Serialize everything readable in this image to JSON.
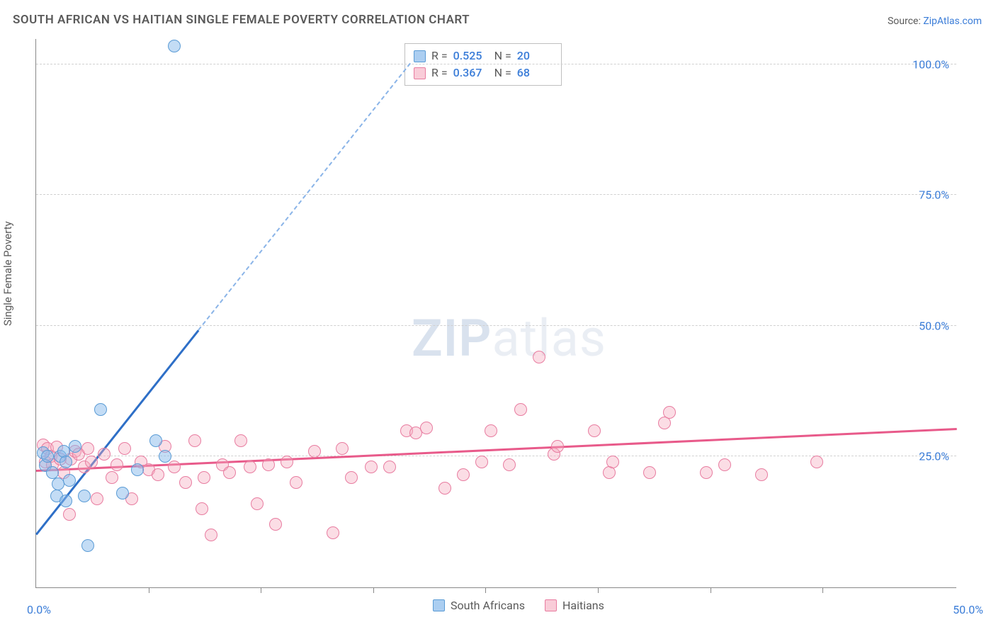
{
  "title": "SOUTH AFRICAN VS HAITIAN SINGLE FEMALE POVERTY CORRELATION CHART",
  "source_prefix": "Source: ",
  "source_link": "ZipAtlas.com",
  "ylabel": "Single Female Poverty",
  "watermark_zip": "ZIP",
  "watermark_atlas": "atlas",
  "chart": {
    "type": "scatter",
    "background_color": "#ffffff",
    "grid_color": "#d0d0d0",
    "axis_color": "#888888",
    "label_color": "#3b7dd8",
    "text_color": "#5a5a5a",
    "xlim": [
      0,
      50
    ],
    "ylim": [
      0,
      105
    ],
    "xtick_positions": [
      0,
      6.1,
      12.2,
      18.3,
      24.4,
      30.5,
      36.6,
      42.7,
      50
    ],
    "xtick_labels": {
      "0": "0.0%",
      "50": "50.0%"
    },
    "ytick_positions": [
      25,
      50,
      75,
      100
    ],
    "ytick_labels": [
      "25.0%",
      "50.0%",
      "75.0%",
      "100.0%"
    ],
    "series": {
      "south_africans": {
        "label": "South Africans",
        "marker_fill": "rgba(135,185,235,0.5)",
        "marker_stroke": "#5a9bd5",
        "marker_size": 18,
        "line_color_solid": "#2e6fc7",
        "line_color_dash": "#8ab4e8",
        "R": "0.525",
        "N": "20",
        "regression": {
          "x1": 0,
          "y1": 10,
          "x2_solid": 8.8,
          "y2_solid": 49,
          "x2_dash": 20.3,
          "y2_dash": 100
        },
        "points": [
          [
            0.4,
            25.7
          ],
          [
            0.5,
            23.3
          ],
          [
            0.6,
            25.0
          ],
          [
            0.9,
            22.0
          ],
          [
            1.1,
            17.5
          ],
          [
            1.2,
            19.8
          ],
          [
            1.3,
            25.0
          ],
          [
            1.5,
            26.0
          ],
          [
            1.6,
            24.0
          ],
          [
            1.6,
            16.5
          ],
          [
            1.8,
            20.5
          ],
          [
            2.1,
            27.0
          ],
          [
            2.6,
            17.5
          ],
          [
            2.8,
            8.0
          ],
          [
            3.5,
            34.0
          ],
          [
            4.7,
            18.0
          ],
          [
            5.5,
            22.5
          ],
          [
            6.5,
            28.0
          ],
          [
            7.0,
            25.0
          ],
          [
            7.5,
            103.5
          ]
        ]
      },
      "haitians": {
        "label": "Haitians",
        "marker_fill": "rgba(245,170,190,0.4)",
        "marker_stroke": "#e87ca0",
        "marker_size": 18,
        "line_color": "#e85a8a",
        "R": "0.367",
        "N": "68",
        "regression": {
          "x1": 0,
          "y1": 22.2,
          "x2": 50,
          "y2": 30.2
        },
        "points": [
          [
            0.4,
            27.2
          ],
          [
            0.5,
            24.0
          ],
          [
            0.6,
            26.5
          ],
          [
            0.8,
            25.0
          ],
          [
            0.9,
            23.5
          ],
          [
            1.1,
            26.8
          ],
          [
            1.3,
            24.5
          ],
          [
            1.5,
            22.0
          ],
          [
            1.8,
            14.0
          ],
          [
            1.9,
            24.5
          ],
          [
            2.1,
            26.0
          ],
          [
            2.3,
            25.5
          ],
          [
            2.6,
            23.0
          ],
          [
            2.8,
            26.5
          ],
          [
            3.0,
            24.0
          ],
          [
            3.3,
            17.0
          ],
          [
            3.7,
            25.5
          ],
          [
            4.1,
            21.0
          ],
          [
            4.4,
            23.5
          ],
          [
            4.8,
            26.5
          ],
          [
            5.2,
            17.0
          ],
          [
            5.7,
            24.0
          ],
          [
            6.1,
            22.5
          ],
          [
            6.6,
            21.5
          ],
          [
            7.0,
            27.0
          ],
          [
            7.5,
            23.0
          ],
          [
            8.1,
            20.0
          ],
          [
            8.6,
            28.0
          ],
          [
            9.1,
            21.0
          ],
          [
            9.5,
            10.0
          ],
          [
            9.0,
            15.0
          ],
          [
            10.1,
            23.5
          ],
          [
            10.5,
            22.0
          ],
          [
            11.1,
            28.0
          ],
          [
            11.6,
            23.0
          ],
          [
            12.0,
            16.0
          ],
          [
            12.6,
            23.5
          ],
          [
            13.0,
            12.0
          ],
          [
            13.6,
            24.0
          ],
          [
            14.1,
            20.0
          ],
          [
            15.1,
            26.0
          ],
          [
            16.1,
            10.5
          ],
          [
            16.6,
            26.5
          ],
          [
            17.1,
            21.0
          ],
          [
            18.2,
            23.0
          ],
          [
            19.2,
            23.0
          ],
          [
            20.1,
            30.0
          ],
          [
            20.6,
            29.5
          ],
          [
            21.2,
            30.5
          ],
          [
            22.2,
            19.0
          ],
          [
            23.2,
            21.5
          ],
          [
            24.2,
            24.0
          ],
          [
            24.7,
            30.0
          ],
          [
            25.7,
            23.5
          ],
          [
            26.3,
            34.0
          ],
          [
            27.3,
            44.0
          ],
          [
            28.1,
            25.5
          ],
          [
            28.3,
            27.0
          ],
          [
            30.3,
            30.0
          ],
          [
            31.1,
            22.0
          ],
          [
            31.3,
            24.0
          ],
          [
            33.3,
            22.0
          ],
          [
            34.1,
            31.5
          ],
          [
            34.4,
            33.5
          ],
          [
            36.4,
            22.0
          ],
          [
            37.4,
            23.5
          ],
          [
            39.4,
            21.5
          ],
          [
            42.4,
            24.0
          ]
        ]
      }
    }
  },
  "legend_stats": {
    "R_label": "R =",
    "N_label": "N ="
  }
}
